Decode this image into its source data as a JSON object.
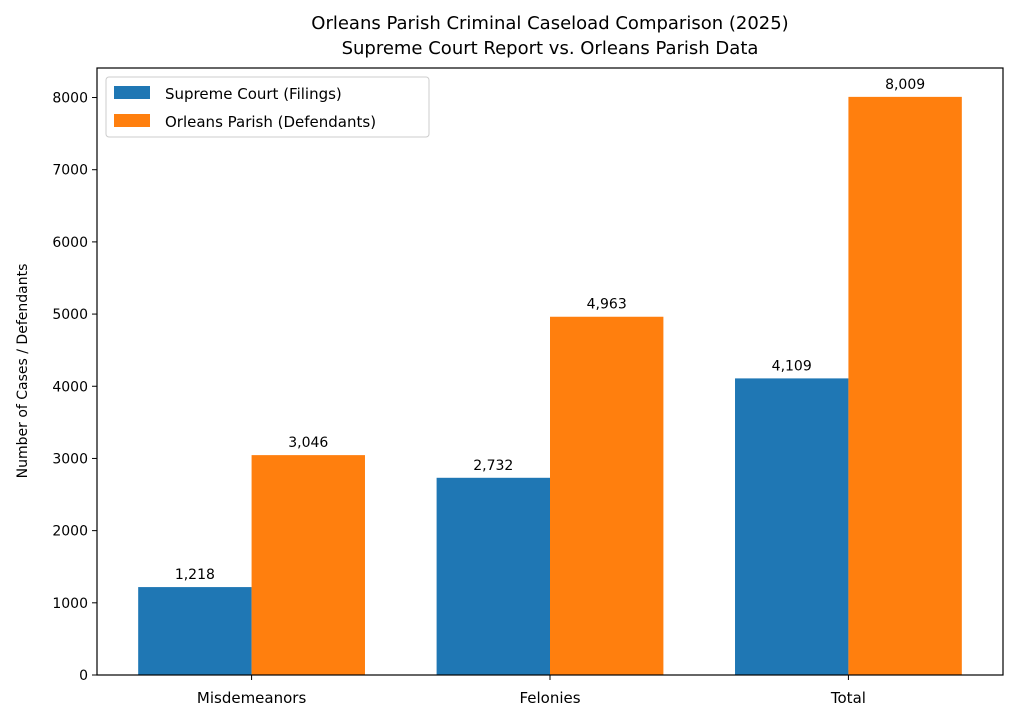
{
  "chart_data": {
    "type": "bar",
    "title": [
      "Orleans Parish Criminal Caseload Comparison (2025)",
      "Supreme Court Report vs. Orleans Parish Data"
    ],
    "xlabel": "",
    "ylabel": "Number of Cases / Defendants",
    "categories": [
      "Misdemeanors",
      "Felonies",
      "Total"
    ],
    "series": [
      {
        "name": "Supreme Court (Filings)",
        "color": "#1f77b4",
        "values": [
          1218,
          2732,
          4109
        ],
        "labels": [
          "1,218",
          "2,732",
          "4,109"
        ]
      },
      {
        "name": "Orleans Parish (Defendants)",
        "color": "#ff7f0e",
        "values": [
          3046,
          4963,
          8009
        ],
        "labels": [
          "3,046",
          "4,963",
          "8,009"
        ]
      }
    ],
    "ylim": [
      0,
      8409
    ],
    "yticks": [
      0,
      1000,
      2000,
      3000,
      4000,
      5000,
      6000,
      7000,
      8000
    ],
    "grid": false,
    "legend_position": "top-left"
  }
}
